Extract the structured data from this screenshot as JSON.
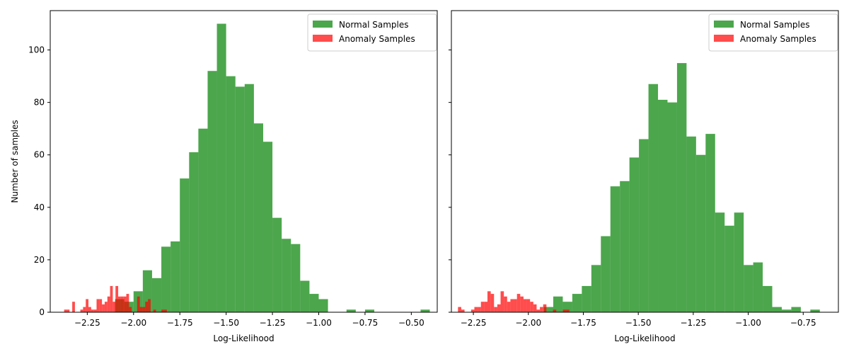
{
  "chart_data": [
    {
      "type": "histogram",
      "xlabel": "Log-Likelihood",
      "ylabel": "Number of samples",
      "xlim": [
        -2.45,
        -0.36
      ],
      "ylim": [
        0,
        115
      ],
      "xticks": [
        -2.25,
        -2.0,
        -1.75,
        -1.5,
        -1.25,
        -1.0,
        -0.75,
        -0.5
      ],
      "xtick_labels": [
        "−2.25",
        "−2.00",
        "−1.75",
        "−1.50",
        "−1.25",
        "−1.00",
        "−0.75",
        "−0.50"
      ],
      "yticks": [
        0,
        20,
        40,
        60,
        80,
        100
      ],
      "ytick_labels": [
        "0",
        "20",
        "40",
        "60",
        "80",
        "100"
      ],
      "legend_position": "top-right",
      "series": [
        {
          "name": "Normal Samples",
          "color": "#008000",
          "alpha": 0.7,
          "bin_start": -2.1,
          "bin_width": 0.05,
          "counts": [
            5,
            4,
            8,
            16,
            13,
            25,
            27,
            51,
            61,
            70,
            92,
            110,
            90,
            86,
            87,
            72,
            65,
            36,
            28,
            26,
            12,
            7,
            5,
            0,
            0,
            1,
            0,
            1
          ],
          "extra_bars": [
            {
              "x0": -0.45,
              "x1": -0.4,
              "y": 1
            }
          ]
        },
        {
          "name": "Anomaly Samples",
          "color": "#ff0000",
          "alpha": 0.7,
          "bin_start": -2.375,
          "bin_width": 0.0146,
          "counts": [
            1,
            1,
            0,
            4,
            0,
            0,
            1,
            2,
            5,
            2,
            1,
            1,
            5,
            5,
            3,
            4,
            6,
            10,
            4,
            10,
            6,
            6,
            6,
            7,
            2,
            0,
            0,
            6,
            2,
            2,
            4,
            5,
            0,
            1,
            0,
            0,
            1,
            1
          ]
        }
      ]
    },
    {
      "type": "histogram",
      "xlabel": "Log-Likelihood",
      "ylabel": "",
      "xlim": [
        -2.35,
        -0.59
      ],
      "ylim": [
        0,
        115
      ],
      "xticks": [
        -2.25,
        -2.0,
        -1.75,
        -1.5,
        -1.25,
        -1.0,
        -0.75
      ],
      "xtick_labels": [
        "−2.25",
        "−2.00",
        "−1.75",
        "−1.50",
        "−1.25",
        "−1.00",
        "−0.75"
      ],
      "yticks": [
        0,
        20,
        40,
        60,
        80,
        100
      ],
      "ytick_labels": [
        "",
        "",
        "",
        "",
        "",
        ""
      ],
      "legend_position": "top-right",
      "series": [
        {
          "name": "Normal Samples",
          "color": "#008000",
          "alpha": 0.7,
          "bin_start": -1.93,
          "bin_width": 0.0433,
          "counts": [
            2,
            6,
            4,
            7,
            10,
            18,
            29,
            48,
            50,
            59,
            66,
            87,
            81,
            80,
            95,
            67,
            60,
            68,
            38,
            33,
            38,
            18,
            19,
            10,
            2,
            1,
            2,
            0,
            1
          ]
        },
        {
          "name": "Anomaly Samples",
          "color": "#ff0000",
          "alpha": 0.7,
          "bin_start": -2.32,
          "bin_width": 0.0149,
          "counts": [
            2,
            1,
            0,
            0,
            1,
            2,
            2,
            4,
            4,
            8,
            7,
            2,
            3,
            8,
            6,
            4,
            5,
            5,
            7,
            6,
            5,
            5,
            4,
            3,
            1,
            2,
            3,
            0,
            0,
            1,
            0,
            0,
            1,
            1
          ]
        }
      ]
    }
  ]
}
